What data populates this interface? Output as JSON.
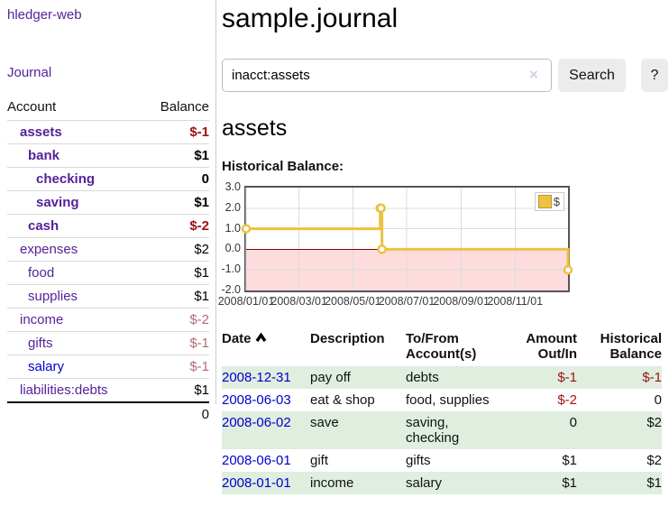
{
  "app": {
    "brand": "hledger-web",
    "nav_journal": "Journal"
  },
  "sidebar": {
    "columns": {
      "account": "Account",
      "balance": "Balance"
    },
    "accounts": [
      {
        "name": "assets",
        "indent": 1,
        "bold": true,
        "balance": "$-1",
        "neg": "strong"
      },
      {
        "name": "bank",
        "indent": 2,
        "bold": true,
        "balance": "$1"
      },
      {
        "name": "checking",
        "indent": 3,
        "bold": true,
        "balance": "0"
      },
      {
        "name": "saving",
        "indent": 3,
        "bold": true,
        "balance": "$1"
      },
      {
        "name": "cash",
        "indent": 2,
        "bold": true,
        "balance": "$-2",
        "neg": "strong"
      },
      {
        "name": "expenses",
        "indent": 1,
        "bold": false,
        "balance": "$2"
      },
      {
        "name": "food",
        "indent": 2,
        "bold": false,
        "balance": "$1"
      },
      {
        "name": "supplies",
        "indent": 2,
        "bold": false,
        "balance": "$1"
      },
      {
        "name": "income",
        "indent": 1,
        "bold": false,
        "balance": "$-2",
        "neg": "muted"
      },
      {
        "name": "gifts",
        "indent": 2,
        "bold": false,
        "balance": "$-1",
        "neg": "muted"
      },
      {
        "name": "salary",
        "indent": 2,
        "bold": false,
        "balance": "$-1",
        "neg": "muted",
        "link": "blue"
      },
      {
        "name": "liabilities:debts",
        "indent": 1,
        "bold": false,
        "balance": "$1"
      }
    ],
    "total": "0"
  },
  "header": {
    "title": "sample.journal"
  },
  "search": {
    "value": "inacct:assets",
    "clear_icon": "×",
    "button": "Search",
    "help_button": "?"
  },
  "account_page": {
    "title": "assets",
    "chart_label": "Historical Balance:"
  },
  "chart_data": {
    "type": "line",
    "step": true,
    "title": "Historical Balance",
    "legend": "$",
    "legend_position": "top-right",
    "grid": true,
    "ylim": [
      -2,
      3
    ],
    "xlim_days": [
      0,
      365
    ],
    "y_ticks": [
      {
        "value": 3,
        "label": "3.0"
      },
      {
        "value": 2,
        "label": "2.0"
      },
      {
        "value": 1,
        "label": "1.0"
      },
      {
        "value": 0,
        "label": "0.0"
      },
      {
        "value": -1,
        "label": "-1.0"
      },
      {
        "value": -2,
        "label": "-2.0"
      }
    ],
    "x_ticks": [
      {
        "day": 0,
        "label": "2008/01/01"
      },
      {
        "day": 60,
        "label": "2008/03/01"
      },
      {
        "day": 121,
        "label": "2008/05/01"
      },
      {
        "day": 182,
        "label": "2008/07/01"
      },
      {
        "day": 244,
        "label": "2008/09/01"
      },
      {
        "day": 305,
        "label": "2008/11/01"
      }
    ],
    "series": [
      {
        "name": "$",
        "points": [
          {
            "date": "2008-01-01",
            "day": 0,
            "value": 1
          },
          {
            "date": "2008-06-01",
            "day": 152,
            "value": 2
          },
          {
            "date": "2008-06-02",
            "day": 153,
            "value": 2
          },
          {
            "date": "2008-06-03",
            "day": 154,
            "value": 0
          },
          {
            "date": "2008-12-31",
            "day": 365,
            "value": -1
          }
        ]
      }
    ]
  },
  "register": {
    "columns": {
      "date": "Date",
      "description": "Description",
      "accounts": "To/From Account(s)",
      "amount": "Amount Out/In",
      "balance": "Historical Balance"
    },
    "sort": {
      "column": "date",
      "direction": "asc"
    },
    "rows": [
      {
        "date": "2008-12-31",
        "description": "pay off",
        "accounts": "debts",
        "amount": "$-1",
        "amount_neg": true,
        "balance": "$-1",
        "balance_neg": true
      },
      {
        "date": "2008-06-03",
        "description": "eat & shop",
        "accounts": "food, supplies",
        "amount": "$-2",
        "amount_neg": true,
        "balance": "0",
        "balance_neg": false
      },
      {
        "date": "2008-06-02",
        "description": "save",
        "accounts": "saving, checking",
        "amount": "0",
        "amount_neg": false,
        "balance": "$2",
        "balance_neg": false
      },
      {
        "date": "2008-06-01",
        "description": "gift",
        "accounts": "gifts",
        "amount": "$1",
        "amount_neg": false,
        "balance": "$2",
        "balance_neg": false
      },
      {
        "date": "2008-01-01",
        "description": "income",
        "accounts": "salary",
        "amount": "$1",
        "amount_neg": false,
        "balance": "$1",
        "balance_neg": false
      }
    ]
  },
  "colors": {
    "purple": "#552299",
    "blue": "#0000cc",
    "negStrong": "#9d1212",
    "negMuted": "#b46a74",
    "stripe": "#dfeedf",
    "line": "#edc240",
    "pink": "#fcdcdc",
    "zeroLine": "#8b0000",
    "gridline": "#dddddd",
    "plotBorder": "#555555",
    "btn": "#ececec",
    "lavender": "#d7cde8"
  }
}
